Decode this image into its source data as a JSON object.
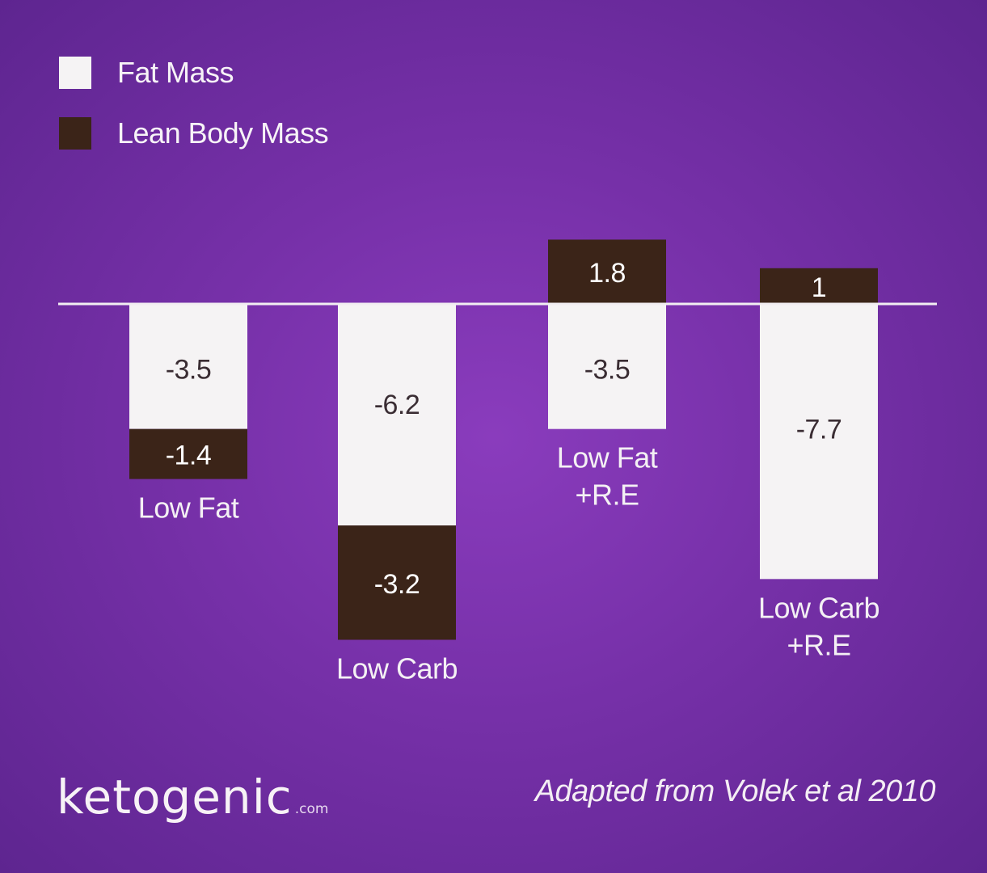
{
  "colors": {
    "fat_mass": "#f5f3f4",
    "lean_body_mass": "#3b2418",
    "fat_mass_text": "#3a2d33",
    "lean_body_mass_text": "#ffffff",
    "baseline": "#f2eef2"
  },
  "chart_data": {
    "type": "bar",
    "stacked": true,
    "categories": [
      "Low Fat",
      "Low Carb",
      "Low Fat\n+R.E",
      "Low Carb\n+R.E"
    ],
    "series": [
      {
        "name": "Fat Mass",
        "values": [
          -3.5,
          -6.2,
          -3.5,
          -7.7
        ]
      },
      {
        "name": "Lean Body Mass",
        "values": [
          -1.4,
          -3.2,
          1.8,
          1
        ]
      }
    ],
    "ylim": [
      -9.5,
      1.8
    ],
    "grid": false,
    "legend": "top-left"
  },
  "legend": {
    "items": [
      {
        "label": "Fat Mass",
        "color": "#f5f3f4"
      },
      {
        "label": "Lean Body Mass",
        "color": "#3b2418"
      }
    ]
  },
  "branding": {
    "logo_text": "ketogenic",
    "logo_suffix": ".com"
  },
  "source_note": "Adapted from Volek et al 2010"
}
